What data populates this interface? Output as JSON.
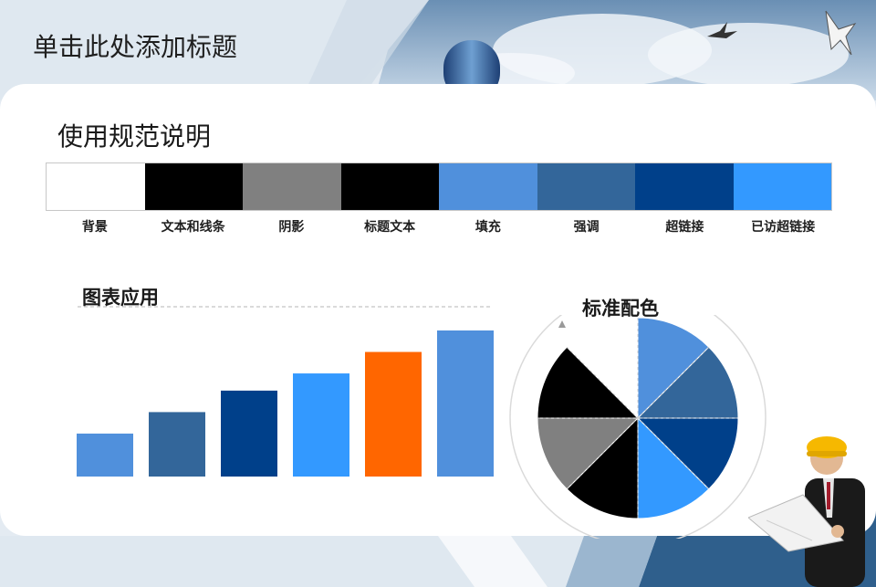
{
  "slide": {
    "title": "单击此处添加标题",
    "subtitle": "使用规范说明"
  },
  "palette": {
    "swatches": [
      {
        "label": "背景",
        "color": "#FFFFFF"
      },
      {
        "label": "文本和线条",
        "color": "#000000"
      },
      {
        "label": "阴影",
        "color": "#808080"
      },
      {
        "label": "标题文本",
        "color": "#000000"
      },
      {
        "label": "填充",
        "color": "#5090DC"
      },
      {
        "label": "强调",
        "color": "#33669A"
      },
      {
        "label": "超链接",
        "color": "#00408A"
      },
      {
        "label": "已访超链接",
        "color": "#3399FF"
      }
    ]
  },
  "sections": {
    "chart_label": "图表应用",
    "pie_label": "标准配色"
  },
  "chart_data": [
    {
      "type": "bar",
      "values": [
        1,
        1.5,
        2,
        2.4,
        2.9,
        3.4
      ],
      "colors": [
        "#5090DC",
        "#33669A",
        "#00408A",
        "#3399FF",
        "#FF6600",
        "#5090DC"
      ]
    },
    {
      "type": "pie",
      "values": [
        1,
        1,
        1,
        1,
        1,
        1,
        1,
        1
      ],
      "colors": [
        "#5090DC",
        "#33669A",
        "#00408A",
        "#3399FF",
        "#000000",
        "#808080",
        "#000000",
        "#FFFFFF"
      ]
    }
  ]
}
